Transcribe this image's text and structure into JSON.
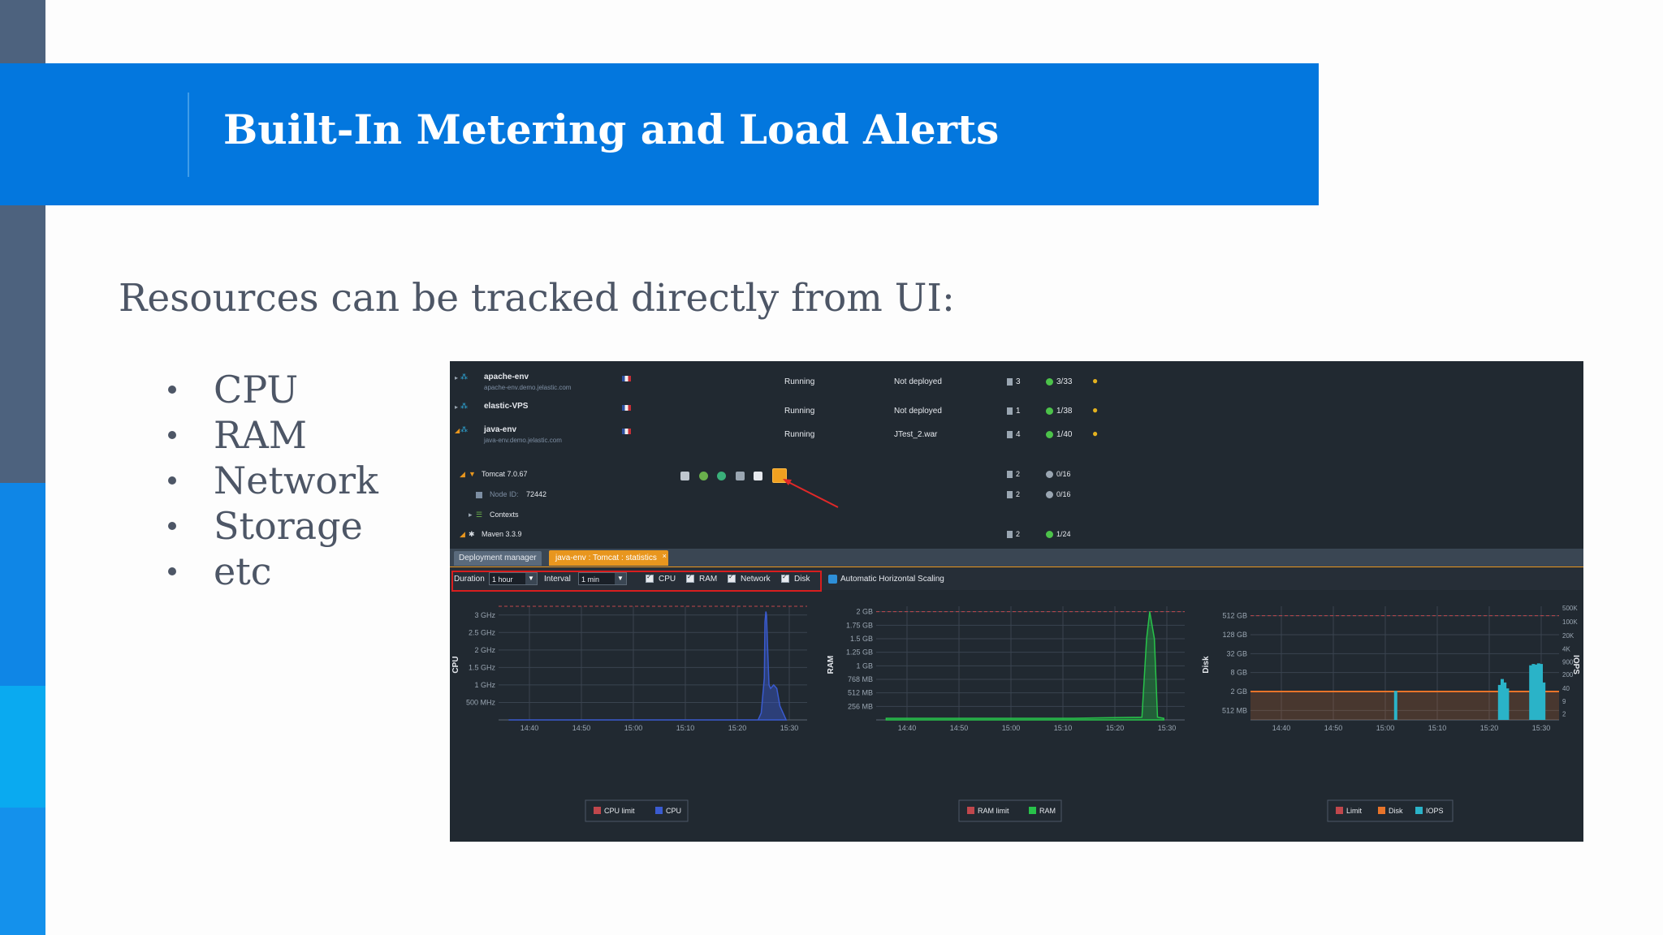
{
  "slide": {
    "title": "Built-In Metering and Load Alerts",
    "subtitle": "Resources can be tracked directly from UI:",
    "bullets": [
      "CPU",
      "RAM",
      "Network",
      "Storage",
      "etc"
    ],
    "colors": {
      "banner": "#0377de",
      "sidebar": "#4d627e",
      "text": "#4d5666"
    }
  },
  "environments": [
    {
      "name": "apache-env",
      "domain": "apache-env.demo.jelastic.com",
      "status": "Running",
      "deployment": "Not deployed",
      "nodes": "3",
      "cloudlets": "3/33"
    },
    {
      "name": "elastic-VPS",
      "domain": "",
      "status": "Running",
      "deployment": "Not deployed",
      "nodes": "1",
      "cloudlets": "1/38"
    },
    {
      "name": "java-env",
      "domain": "java-env.demo.jelastic.com",
      "status": "Running",
      "deployment": "JTest_2.war",
      "nodes": "4",
      "cloudlets": "1/40"
    }
  ],
  "java_env_nodes": {
    "tomcat": {
      "label": "Tomcat 7.0.67",
      "nodes": "2",
      "cloudlets": "0/16"
    },
    "node_id": {
      "label": "Node ID:",
      "value": "72442",
      "nodes": "2",
      "cloudlets": "0/16"
    },
    "contexts": {
      "label": "Contexts"
    },
    "maven": {
      "label": "Maven 3.3.9",
      "nodes": "2",
      "cloudlets": "1/24"
    }
  },
  "tabs": [
    {
      "label": "Deployment manager",
      "active": false
    },
    {
      "label": "java-env : Tomcat : statistics",
      "active": true
    }
  ],
  "toolbar": {
    "duration_label": "Duration",
    "duration_value": "1 hour",
    "interval_label": "Interval",
    "interval_value": "1 min",
    "checkboxes": [
      "CPU",
      "RAM",
      "Network",
      "Disk"
    ],
    "ahs": "Automatic Horizontal Scaling"
  },
  "chart_data": [
    {
      "type": "area",
      "ylabel": "CPU",
      "x_ticks": [
        "14:40",
        "14:50",
        "15:00",
        "15:10",
        "15:20",
        "15:30"
      ],
      "y_ticks": [
        "500 MHz",
        "1 GHz",
        "1.5 GHz",
        "2 GHz",
        "2.5 GHz",
        "3 GHz"
      ],
      "ylim": [
        0,
        3.25
      ],
      "limit_ghz": 3.25,
      "legend": [
        "CPU limit",
        "CPU"
      ],
      "colors": {
        "limit": "#c0474c",
        "series": "#3a5bd0"
      },
      "series": [
        {
          "name": "CPU",
          "x_minutes": [
            14.6,
            15.4,
            15.41,
            15.42,
            15.422,
            15.425,
            15.427,
            15.43,
            15.435,
            15.44,
            15.45,
            15.46,
            15.47,
            15.49
          ],
          "values": [
            0,
            0,
            0.2,
            1.2,
            2.8,
            3.1,
            3.0,
            2.2,
            1.0,
            0.9,
            1.0,
            0.9,
            0.4,
            0
          ]
        }
      ]
    },
    {
      "type": "area",
      "ylabel": "RAM",
      "x_ticks": [
        "14:40",
        "14:50",
        "15:00",
        "15:10",
        "15:20",
        "15:30"
      ],
      "y_ticks": [
        "256 MB",
        "512 MB",
        "768 MB",
        "1 GB",
        "1.25 GB",
        "1.5 GB",
        "1.75 GB",
        "2 GB"
      ],
      "ylim": [
        0,
        2.1
      ],
      "limit_gb": 2.0,
      "legend": [
        "RAM limit",
        "RAM"
      ],
      "colors": {
        "limit": "#c0474c",
        "series": "#28c24a"
      },
      "series": [
        {
          "name": "RAM",
          "x_minutes": [
            14.6,
            15.2,
            15.42,
            15.435,
            15.445,
            15.46,
            15.47,
            15.49
          ],
          "values": [
            0.03,
            0.03,
            0.05,
            1.5,
            2.0,
            1.5,
            0.05,
            0.03
          ]
        }
      ]
    },
    {
      "type": "bar",
      "ylabel": "Disk",
      "y2label": "IOPS",
      "x_ticks": [
        "14:40",
        "14:50",
        "15:00",
        "15:10",
        "15:20",
        "15:30"
      ],
      "y_ticks": [
        "512 MB",
        "2 GB",
        "8 GB",
        "32 GB",
        "128 GB",
        "512 GB"
      ],
      "y2_ticks": [
        "2",
        "9",
        "40",
        "200",
        "900",
        "4K",
        "20K",
        "100K",
        "500K"
      ],
      "limit_gb": 512,
      "disk_gb": 2,
      "legend": [
        "Limit",
        "Disk",
        "IOPS"
      ],
      "colors": {
        "limit": "#c0474c",
        "disk": "#e8742a",
        "iops": "#2ab3c8"
      },
      "iops_bars": [
        {
          "t": "15:02",
          "v": 30
        },
        {
          "t": "15:22",
          "v": 60
        },
        {
          "t": "15:22.5",
          "v": 120
        },
        {
          "t": "15:23",
          "v": 80
        },
        {
          "t": "15:23.5",
          "v": 40
        },
        {
          "t": "15:28",
          "v": 600
        },
        {
          "t": "15:28.5",
          "v": 700
        },
        {
          "t": "15:29",
          "v": 650
        },
        {
          "t": "15:29.5",
          "v": 750
        },
        {
          "t": "15:30",
          "v": 700
        },
        {
          "t": "15:30.5",
          "v": 80
        }
      ]
    }
  ]
}
